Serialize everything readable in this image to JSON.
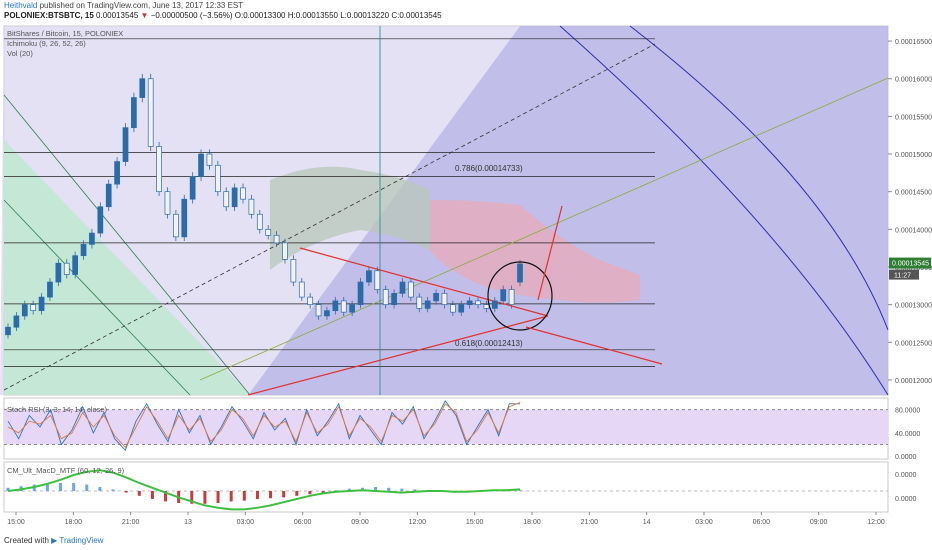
{
  "header": {
    "author": "Heithvald",
    "published": "published on TradingView.com, June 13, 2017 12:33 EST",
    "symbol": "POLONIEX:BTSBTC, 15",
    "last": "0.00013545",
    "change_arrow": "▼",
    "change": "−0.00000500 (−3.56%)",
    "ohlc": "O:0.00013300 H:0.00013550 L:0.00013220 C:0.00013545"
  },
  "legend": {
    "main_title": "BitShares / Bitcoin, 15, POLONIEX",
    "ichimoku": "Ichimoku (9, 26, 52, 26)",
    "volume": "Vol (20)",
    "stoch": "Stoch RSI (3, 3, 14, 14, close)",
    "macd": "CM_Ult_MacD_MTF (60, 12, 26, 9)"
  },
  "footer": {
    "created": "Created with",
    "brand": "TradingView"
  },
  "colors": {
    "up": "#26a69a",
    "down": "#ef5350",
    "candle_body": "#2a6ba8",
    "trend": "#e0312f",
    "fan": "#2d2db5",
    "fan_fill": "#b7b3e6",
    "green_zone": "#bfe8cf",
    "stoch_band": "#e7d7f6",
    "price_tag": "#2f7d32"
  },
  "chart_data": [
    {
      "type": "candlestick",
      "title": "BitShares / Bitcoin, 15, POLONIEX",
      "ylim": [
        0.000118,
        0.000167
      ],
      "y_ticks": [
        "0.00016500",
        "0.00016000",
        "0.00015500",
        "0.00015000",
        "0.00014500",
        "0.00014000",
        "0.00013500",
        "0.00013000",
        "0.00012500",
        "0.00012000"
      ],
      "x_ticks": [
        "15:00",
        "18:00",
        "21:00",
        "13",
        "03:00",
        "06:00",
        "09:00",
        "12:00",
        "15:00",
        "18:00",
        "21:00",
        "14",
        "03:00",
        "06:00",
        "09:00",
        "12:00"
      ],
      "last_price": "0.00013545",
      "last_time": "11:27",
      "fib_levels": [
        {
          "label": "0.786(0.00014733)",
          "value": 0.00014733
        },
        {
          "label": "0.618(0.00012413)",
          "value": 0.00012413
        }
      ],
      "horizontal_levels": [
        0.0001653,
        0.0001502,
        0.000147,
        0.0001382,
        0.0001301,
        0.000124,
        0.0001218
      ],
      "close": [
        0.000127,
        0.0001285,
        0.00013,
        0.0001292,
        0.000131,
        0.000133,
        0.0001355,
        0.000134,
        0.0001365,
        0.000138,
        0.0001395,
        0.000143,
        0.000146,
        0.000149,
        0.0001535,
        0.0001575,
        0.00016,
        0.000151,
        0.000145,
        0.000142,
        0.000139,
        0.000144,
        0.000147,
        0.00015,
        0.0001485,
        0.000145,
        0.000143,
        0.0001455,
        0.000144,
        0.000142,
        0.00014,
        0.0001392,
        0.0001382,
        0.000136,
        0.000133,
        0.000131,
        0.00013,
        0.0001285,
        0.0001292,
        0.0001305,
        0.000129,
        0.00013,
        0.000133,
        0.0001345,
        0.000132,
        0.00013,
        0.0001315,
        0.000133,
        0.000131,
        0.0001295,
        0.0001305,
        0.0001315,
        0.00013,
        0.000129,
        0.00013,
        0.0001305,
        0.00013,
        0.0001295,
        0.0001305,
        0.000132,
        0.00013,
        0.0001354
      ],
      "open": [
        0.000126,
        0.000127,
        0.0001285,
        0.00013,
        0.0001292,
        0.000131,
        0.000133,
        0.0001355,
        0.000134,
        0.0001365,
        0.000138,
        0.0001395,
        0.000143,
        0.000146,
        0.000149,
        0.0001535,
        0.0001575,
        0.00016,
        0.000151,
        0.000145,
        0.000142,
        0.000139,
        0.000144,
        0.000147,
        0.00015,
        0.0001485,
        0.000145,
        0.000143,
        0.0001455,
        0.000144,
        0.000142,
        0.00014,
        0.0001392,
        0.0001382,
        0.000136,
        0.000133,
        0.000131,
        0.00013,
        0.0001285,
        0.0001292,
        0.0001305,
        0.000129,
        0.00013,
        0.000133,
        0.0001345,
        0.000132,
        0.00013,
        0.0001315,
        0.000133,
        0.000131,
        0.0001295,
        0.0001305,
        0.0001315,
        0.00013,
        0.000129,
        0.00013,
        0.0001305,
        0.00013,
        0.0001295,
        0.0001305,
        0.000132,
        0.000133
      ]
    },
    {
      "type": "line",
      "title": "Stoch RSI (3, 3, 14, 14, close)",
      "ylim": [
        -5,
        100
      ],
      "y_ticks": [
        "80.0000",
        "40.0000",
        "0.0000"
      ],
      "band": [
        20,
        80
      ],
      "series": [
        {
          "values": [
            60,
            30,
            70,
            50,
            80,
            20,
            45,
            85,
            40,
            75,
            30,
            10,
            60,
            90,
            55,
            25,
            80,
            40,
            70,
            20,
            50,
            85,
            60,
            30,
            75,
            45,
            65,
            20,
            80,
            35,
            60,
            90,
            30,
            70,
            45,
            20,
            75,
            55,
            85,
            30,
            60,
            95,
            70,
            20,
            50,
            80,
            35,
            90,
            90
          ]
        },
        {
          "values": [
            50,
            40,
            60,
            55,
            70,
            30,
            40,
            75,
            50,
            70,
            35,
            15,
            50,
            85,
            60,
            30,
            70,
            45,
            65,
            25,
            45,
            80,
            65,
            35,
            70,
            50,
            60,
            25,
            75,
            40,
            55,
            85,
            35,
            65,
            50,
            25,
            70,
            60,
            80,
            35,
            55,
            90,
            75,
            25,
            45,
            75,
            40,
            85,
            92
          ]
        }
      ]
    },
    {
      "type": "bar",
      "title": "CM_Ult_MacD_MTF (60, 12, 26, 9)",
      "y_ticks": [
        "0.0000",
        "0.0000"
      ],
      "histogram": [
        0.4,
        0.6,
        0.8,
        0.9,
        1.0,
        1.0,
        0.8,
        0.5,
        0.2,
        -0.2,
        -0.6,
        -1.0,
        -1.3,
        -1.5,
        -1.6,
        -1.6,
        -1.5,
        -1.3,
        -1.2,
        -1.0,
        -0.9,
        -0.8,
        -0.6,
        -0.4,
        -0.2,
        0.1,
        0.3,
        0.4,
        0.5,
        0.4,
        0.3,
        0.2,
        0.1,
        -0.1,
        -0.2,
        -0.1,
        0.0,
        0.1,
        0.2,
        0.1
      ],
      "macd_line": [
        0.0,
        0.2,
        0.5,
        0.9,
        1.4,
        2.0,
        2.4,
        2.6,
        2.3,
        1.7,
        1.0,
        0.4,
        -0.2,
        -0.8,
        -1.3,
        -1.8,
        -2.1,
        -2.3,
        -2.3,
        -2.1,
        -1.8,
        -1.4,
        -1.0,
        -0.6,
        -0.3,
        -0.1,
        0.0,
        0.1,
        0.0,
        -0.1,
        -0.2,
        -0.1,
        0.0,
        0.0,
        -0.1,
        -0.1,
        0.0,
        0.1,
        0.1,
        0.2
      ]
    }
  ]
}
